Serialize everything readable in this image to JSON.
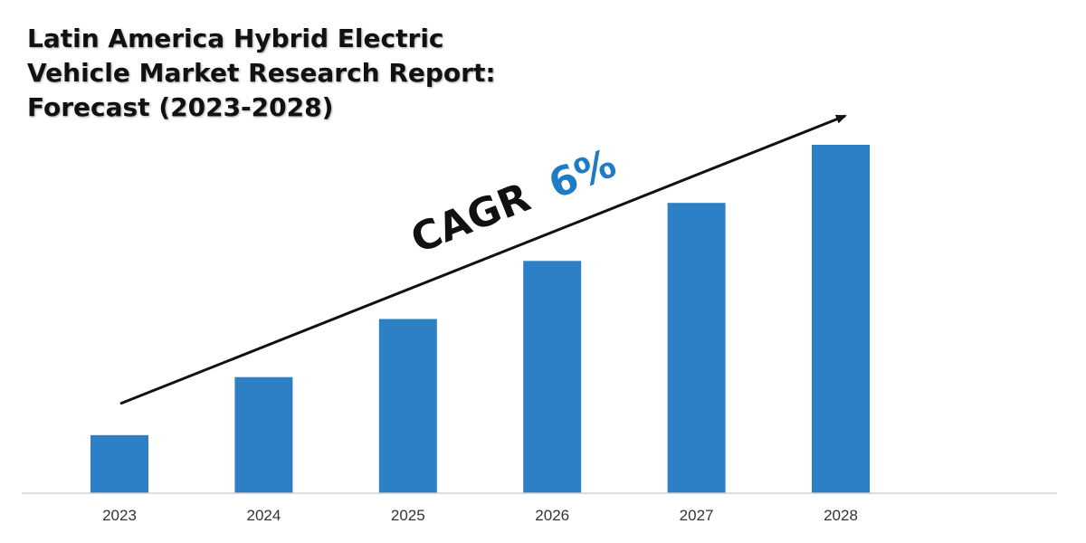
{
  "title_lines": [
    "Latin America Hybrid Electric",
    "Vehicle Market Research Report:",
    "Forecast (2023-2028)"
  ],
  "annotation": {
    "label": "CAGR",
    "value": "6%",
    "label_color": "#111111",
    "value_color": "#1f7bc4"
  },
  "colors": {
    "bar": "#2e80c6",
    "axis": "#d0d0d0",
    "arrow": "#111111"
  },
  "chart_data": {
    "type": "bar",
    "title": "Latin America Hybrid Electric Vehicle Market Research Report: Forecast (2023-2028)",
    "categories": [
      "2023",
      "2024",
      "2025",
      "2026",
      "2027",
      "2028"
    ],
    "values": [
      1.0,
      2.0,
      3.0,
      4.0,
      5.0,
      6.0
    ],
    "xlabel": "",
    "ylabel": "",
    "ylim": [
      0,
      6.0
    ],
    "grid": false,
    "legend": "none",
    "annotations": [
      "CAGR 6%"
    ]
  }
}
